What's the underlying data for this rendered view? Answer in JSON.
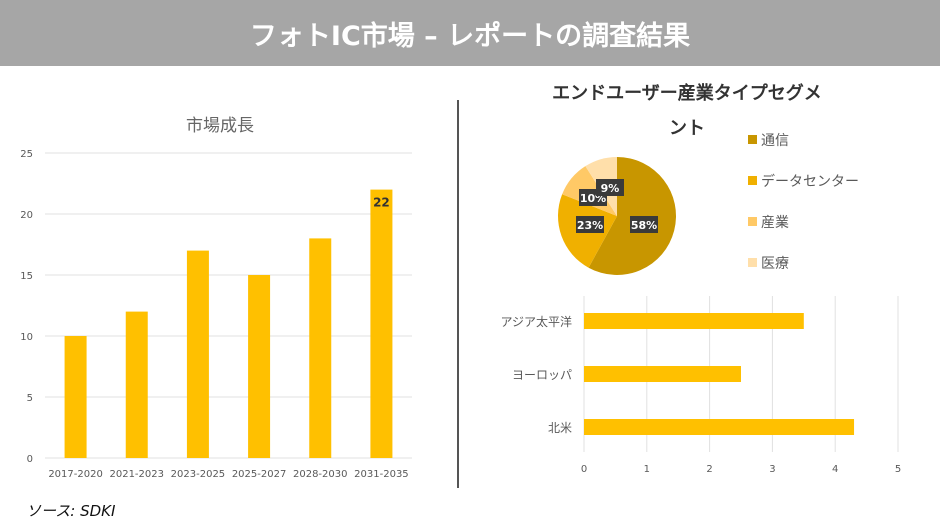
{
  "header": {
    "title": "フォトIC市場 – レポートの調査結果"
  },
  "source": "ソース: SDKI",
  "chart_data": [
    {
      "type": "bar",
      "title": "市場成長",
      "categories": [
        "2017-2020",
        "2021-2023",
        "2023-2025",
        "2025-2027",
        "2028-2030",
        "2031-2035"
      ],
      "values": [
        10,
        12,
        17,
        15,
        18,
        22
      ],
      "ylim": [
        0,
        25
      ],
      "yticks": [
        0,
        5,
        10,
        15,
        20,
        25
      ],
      "grid": true,
      "color": "#ffc000",
      "data_labels": [
        {
          "index": 5,
          "text": "22"
        }
      ]
    },
    {
      "type": "pie",
      "title": "エンドユーザー産業タイプセグメント",
      "categories": [
        "通信",
        "データセンター",
        "産業",
        "医療"
      ],
      "values": [
        58,
        23,
        10,
        9
      ],
      "labels": [
        "58%",
        "23%",
        "10%",
        "9%"
      ],
      "colors": [
        "#c89600",
        "#f0b000",
        "#ffc966",
        "#ffdfaa"
      ],
      "legend": "right"
    },
    {
      "type": "bar",
      "orientation": "horizontal",
      "categories": [
        "アジア太平洋",
        "ヨーロッパ",
        "北米"
      ],
      "values": [
        3.5,
        2.5,
        4.3
      ],
      "xlim": [
        0,
        5
      ],
      "xticks": [
        0,
        1,
        2,
        3,
        4,
        5
      ],
      "grid": true,
      "color": "#ffc000"
    }
  ]
}
